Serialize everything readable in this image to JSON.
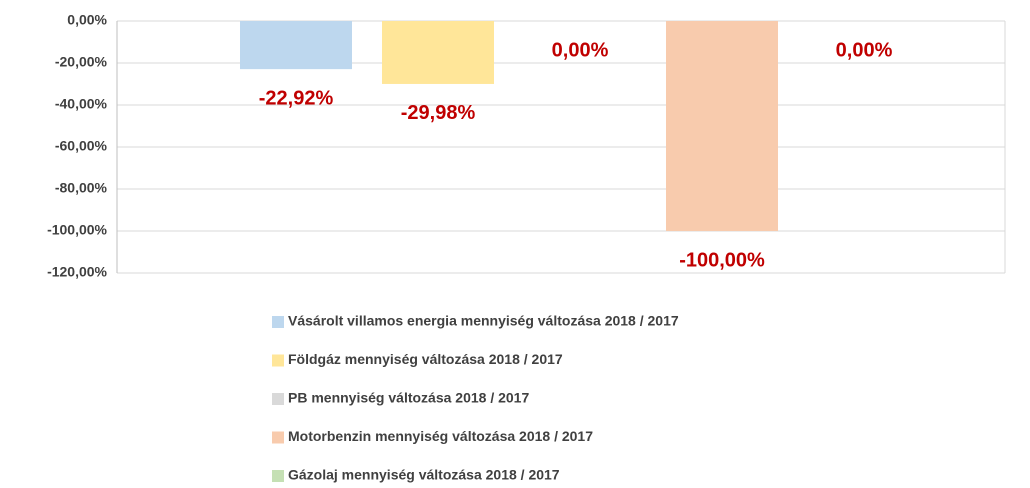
{
  "chart_data": {
    "type": "bar",
    "categories": [
      null
    ],
    "series": [
      {
        "name": "Vásárolt villamos energia mennyiség változása 2018  / 2017",
        "color": "#bdd7ee",
        "values": [
          -22.92
        ],
        "value_labels": [
          "-22,92%"
        ]
      },
      {
        "name": "Földgáz mennyiség változása 2018  / 2017",
        "color": "#ffe699",
        "values": [
          -29.98
        ],
        "value_labels": [
          "-29,98%"
        ]
      },
      {
        "name": "PB mennyiség változása 2018  / 2017",
        "color": "#d9d9d9",
        "values": [
          0
        ],
        "value_labels": [
          "0,00%"
        ]
      },
      {
        "name": "Motorbenzin mennyiség változása 2018  / 2017",
        "color": "#f8cbad",
        "values": [
          -100
        ],
        "value_labels": [
          "-100,00%"
        ]
      },
      {
        "name": "Gázolaj mennyiség változása 2018  / 2017",
        "color": "#c5e0b4",
        "values": [
          0
        ],
        "value_labels": [
          "0,00%"
        ]
      }
    ],
    "ylim": [
      -120,
      0
    ],
    "yticks": [
      {
        "value": 0,
        "label": "0,00%"
      },
      {
        "value": -20,
        "label": "-20,00%"
      },
      {
        "value": -40,
        "label": "-40,00%"
      },
      {
        "value": -60,
        "label": "-60,00%"
      },
      {
        "value": -80,
        "label": "-80,00%"
      },
      {
        "value": -100,
        "label": "-100,00%"
      },
      {
        "value": -120,
        "label": "-120,00%"
      }
    ],
    "grid": true,
    "legend": "bottom",
    "value_label_color": "#c00000"
  }
}
